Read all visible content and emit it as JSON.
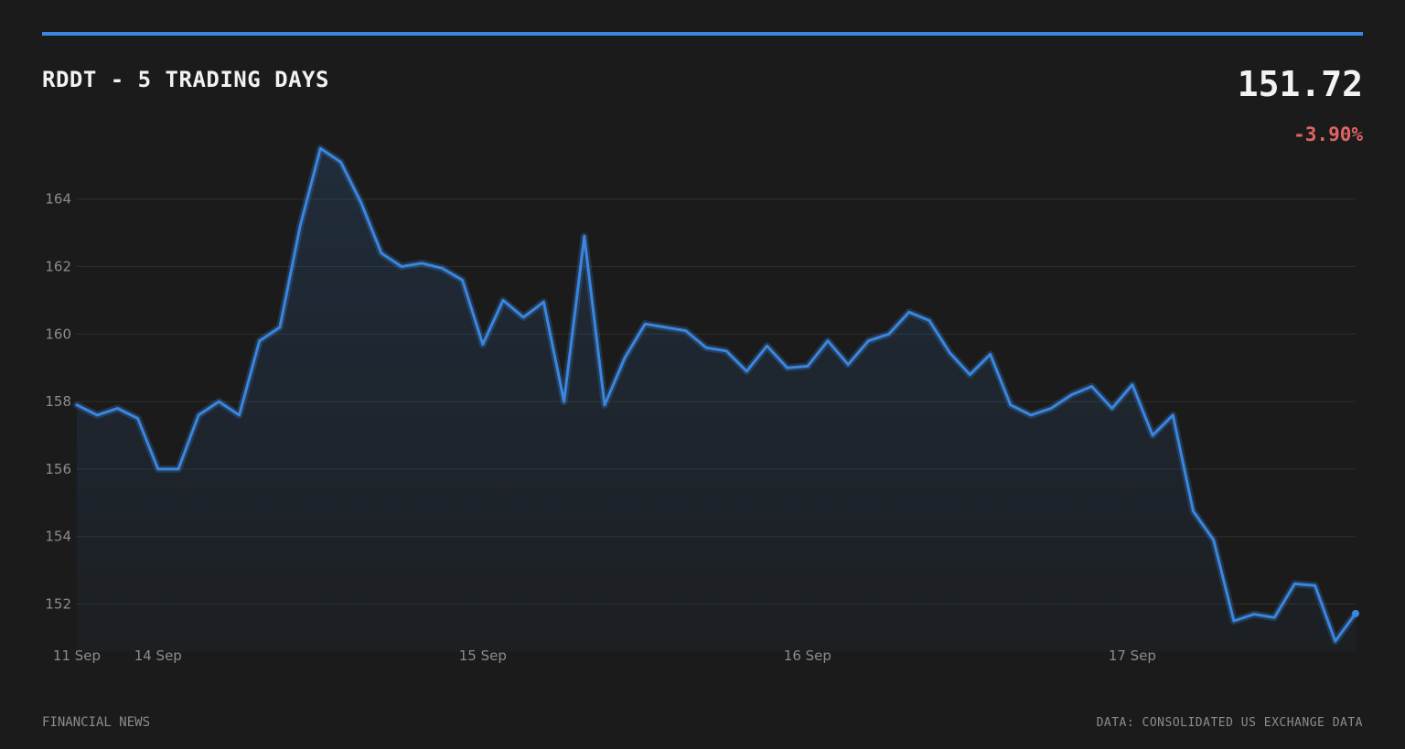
{
  "header": {
    "title": "RDDT - 5 TRADING DAYS",
    "price": "151.72",
    "change": "-3.90%"
  },
  "footer": {
    "left": "FINANCIAL NEWS",
    "right": "DATA: CONSOLIDATED US EXCHANGE DATA"
  },
  "colors": {
    "line": "#3a86e0",
    "negative": "#e06464",
    "background": "#1b1b1b"
  },
  "chart_data": {
    "type": "area",
    "title": "RDDT - 5 TRADING DAYS",
    "xlabel": "",
    "ylabel": "",
    "ylim": [
      150.6,
      166.4
    ],
    "yticks": [
      152,
      154,
      156,
      158,
      160,
      162,
      164
    ],
    "grid": true,
    "x_tick_labels": [
      {
        "index": 0,
        "label": "11 Sep"
      },
      {
        "index": 4,
        "label": "14 Sep"
      },
      {
        "index": 20,
        "label": "15 Sep"
      },
      {
        "index": 36,
        "label": "16 Sep"
      },
      {
        "index": 52,
        "label": "17 Sep"
      }
    ],
    "series": [
      {
        "values": [
          157.9,
          157.6,
          157.8,
          157.5,
          156.0,
          156.0,
          157.6,
          158.0,
          157.6,
          159.8,
          160.2,
          163.2,
          165.5,
          165.1,
          163.9,
          162.4,
          162.0,
          162.1,
          161.95,
          161.6,
          159.7,
          161.0,
          160.5,
          160.95,
          158.0,
          162.9,
          157.9,
          159.3,
          160.3,
          160.2,
          160.1,
          159.6,
          159.5,
          158.9,
          159.65,
          159.0,
          159.05,
          159.8,
          159.1,
          159.8,
          160.0,
          160.65,
          160.4,
          159.45,
          158.8,
          159.4,
          157.9,
          157.6,
          157.8,
          158.2,
          158.45,
          157.8,
          158.5,
          157.0,
          157.6,
          154.75,
          153.9,
          151.5,
          151.7,
          151.6,
          152.6,
          152.55,
          150.9,
          151.72
        ]
      }
    ]
  }
}
